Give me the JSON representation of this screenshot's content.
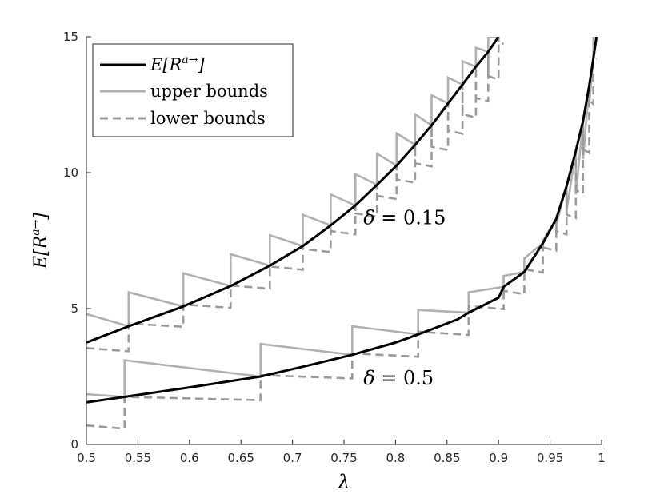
{
  "chart_data": {
    "type": "line",
    "xlabel": "λ",
    "ylabel": "E[R^{a→}]",
    "xlim": [
      0.5,
      1.0
    ],
    "ylim": [
      0,
      15
    ],
    "xticks": [
      "0.5",
      "0.55",
      "0.6",
      "0.65",
      "0.7",
      "0.75",
      "0.8",
      "0.85",
      "0.9",
      "0.95",
      "1"
    ],
    "yticks": [
      "0",
      "5",
      "10",
      "15"
    ],
    "grid": false,
    "legend_position": "top-left",
    "legend": [
      {
        "label_base": "E[R",
        "label_sup": "a→",
        "label_end": "]",
        "style": "solid",
        "color": "#000000"
      },
      {
        "label": "upper bounds",
        "style": "solid",
        "color": "#b0b0b0"
      },
      {
        "label": "lower bounds",
        "style": "dashed",
        "color": "#9a9a9a"
      }
    ],
    "annotations": [
      {
        "text_sym": "δ",
        "text_val": " = 0.15",
        "x": 0.775,
        "y": 8.1
      },
      {
        "text_sym": "δ",
        "text_val": " = 0.5",
        "x": 0.775,
        "y": 2.2
      }
    ],
    "series": [
      {
        "delta": 0.15,
        "xmax": 0.905,
        "curve": [
          [
            0.5,
            3.75
          ],
          [
            0.541,
            4.35
          ],
          [
            0.594,
            5.08
          ],
          [
            0.64,
            5.83
          ],
          [
            0.678,
            6.58
          ],
          [
            0.71,
            7.3
          ],
          [
            0.737,
            8.06
          ],
          [
            0.761,
            8.79
          ],
          [
            0.782,
            9.55
          ],
          [
            0.801,
            10.26
          ],
          [
            0.819,
            11.02
          ],
          [
            0.835,
            11.74
          ],
          [
            0.851,
            12.55
          ],
          [
            0.865,
            13.24
          ],
          [
            0.878,
            13.9
          ],
          [
            0.89,
            14.45
          ],
          [
            0.9,
            15.0
          ]
        ],
        "jumps": [
          0.541,
          0.594,
          0.64,
          0.678,
          0.71,
          0.737,
          0.761,
          0.782,
          0.801,
          0.819,
          0.835,
          0.851,
          0.865,
          0.878,
          0.89,
          0.9
        ],
        "upper_start": 4.8,
        "upper_after": [
          5.6,
          6.3,
          7.0,
          7.7,
          8.45,
          9.2,
          9.95,
          10.7,
          11.45,
          12.15,
          12.85,
          13.5,
          14.1,
          14.6,
          15.0,
          15.2
        ],
        "lower_start": 3.55,
        "lower_after": [
          4.1,
          4.8,
          5.5,
          6.2,
          6.85,
          7.5,
          8.15,
          8.8,
          9.4,
          10.0,
          10.6,
          11.2,
          11.8,
          12.4,
          13.2,
          14.4
        ]
      },
      {
        "delta": 0.5,
        "xmax": 0.995,
        "curve": [
          [
            0.5,
            1.55
          ],
          [
            0.537,
            1.75
          ],
          [
            0.6,
            2.1
          ],
          [
            0.669,
            2.5
          ],
          [
            0.72,
            2.95
          ],
          [
            0.758,
            3.3
          ],
          [
            0.8,
            3.75
          ],
          [
            0.822,
            4.05
          ],
          [
            0.86,
            4.6
          ],
          [
            0.871,
            4.85
          ],
          [
            0.9,
            5.4
          ],
          [
            0.905,
            5.8
          ],
          [
            0.925,
            6.35
          ],
          [
            0.943,
            7.4
          ],
          [
            0.956,
            8.3
          ],
          [
            0.966,
            9.5
          ],
          [
            0.975,
            10.8
          ],
          [
            0.982,
            11.9
          ],
          [
            0.988,
            13.2
          ],
          [
            0.992,
            14.2
          ],
          [
            0.995,
            15.0
          ]
        ],
        "jumps": [
          0.537,
          0.669,
          0.758,
          0.822,
          0.871,
          0.905,
          0.925,
          0.943,
          0.956,
          0.966,
          0.975,
          0.982,
          0.988,
          0.992
        ],
        "upper_start": 1.85,
        "upper_after": [
          3.1,
          3.7,
          4.35,
          4.95,
          5.6,
          6.2,
          6.85,
          7.5,
          8.1,
          8.6,
          9.2,
          10.5,
          12.5,
          15.0
        ],
        "lower_start": 0.7,
        "lower_after": [
          1.4,
          2.2,
          3.0,
          3.8,
          4.75,
          5.3,
          6.1,
          6.9,
          7.5,
          8.1,
          9.0,
          10.5,
          12.3,
          14.6
        ]
      }
    ]
  }
}
